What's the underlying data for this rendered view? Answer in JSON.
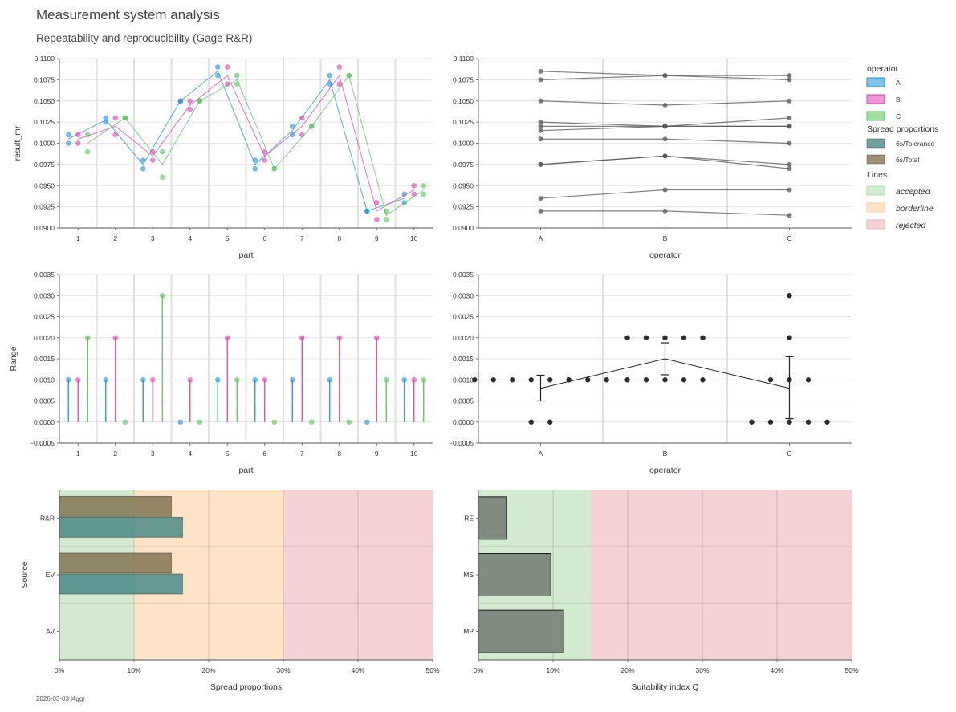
{
  "figure": {
    "title": "Measurement system analysis",
    "subtitle": "Repeatability and reproducibility (Gage R&R)",
    "footer": "2026-03-03 j4ggr"
  },
  "colors": {
    "A": "#1f8fd6",
    "B": "#dc3fb2",
    "C": "#5cbf5c",
    "dark": "#222222",
    "gray": "#555555",
    "tolerance": "#4b8a87",
    "total": "#857652",
    "accepted": "#d2eacf",
    "borderline": "#fee3c7",
    "rejected": "#f5d1d6",
    "q_bar": "#7f8c7f"
  },
  "legend": {
    "operator_title": "operator",
    "operators": [
      "A",
      "B",
      "C"
    ],
    "spread_title": "Spread proportions",
    "spread_items": [
      "6s/Tolerance",
      "6s/Total"
    ],
    "lines_title": "Lines",
    "lines_items": [
      "accepted",
      "borderline",
      "rejected"
    ]
  },
  "chart_data": [
    {
      "id": "individuals_by_part",
      "type": "scatter",
      "xlabel": "part",
      "ylabel": "result_mr",
      "categories": [
        "1",
        "2",
        "3",
        "4",
        "5",
        "6",
        "7",
        "8",
        "9",
        "10"
      ],
      "ylim": [
        0.09,
        0.11
      ],
      "yticks": [
        0.09,
        0.0925,
        0.095,
        0.0975,
        0.1,
        0.1025,
        0.105,
        0.1075,
        0.11
      ],
      "ytick_labels": [
        "0.0900",
        "0.0925",
        "0.0950",
        "0.0975",
        "0.1000",
        "0.1025",
        "0.1050",
        "0.1075",
        "0.1100"
      ],
      "grid": true,
      "series": [
        {
          "name": "A",
          "points": [
            [
              0.101,
              0.1
            ],
            [
              0.103,
              0.1025
            ],
            [
              0.098,
              0.097
            ],
            [
              0.105,
              0.105
            ],
            [
              0.109,
              0.108
            ],
            [
              0.098,
              0.097
            ],
            [
              0.102,
              0.101
            ],
            [
              0.108,
              0.107
            ],
            [
              0.092,
              0.092
            ],
            [
              0.094,
              0.093
            ]
          ]
        },
        {
          "name": "B",
          "points": [
            [
              0.101,
              0.1
            ],
            [
              0.103,
              0.101
            ],
            [
              0.099,
              0.098
            ],
            [
              0.105,
              0.104
            ],
            [
              0.109,
              0.107
            ],
            [
              0.099,
              0.098
            ],
            [
              0.103,
              0.101
            ],
            [
              0.109,
              0.107
            ],
            [
              0.093,
              0.091
            ],
            [
              0.095,
              0.094
            ]
          ]
        },
        {
          "name": "C",
          "points": [
            [
              0.101,
              0.099
            ],
            [
              0.103,
              0.103
            ],
            [
              0.099,
              0.096
            ],
            [
              0.105,
              0.105
            ],
            [
              0.108,
              0.107
            ],
            [
              0.097,
              0.097
            ],
            [
              0.102,
              0.102
            ],
            [
              0.108,
              0.108
            ],
            [
              0.092,
              0.091
            ],
            [
              0.095,
              0.094
            ]
          ]
        }
      ]
    },
    {
      "id": "individuals_by_operator",
      "type": "line",
      "xlabel": "operator",
      "ylabel": "",
      "categories": [
        "A",
        "B",
        "C"
      ],
      "ylim": [
        0.09,
        0.11
      ],
      "yticks": [
        0.09,
        0.0925,
        0.095,
        0.0975,
        0.1,
        0.1025,
        0.105,
        0.1075,
        0.11
      ],
      "ytick_labels": [
        "0.0900",
        "0.0925",
        "0.0950",
        "0.0975",
        "0.1000",
        "0.1025",
        "0.1050",
        "0.1075",
        "0.1100"
      ],
      "grid": true,
      "series": [
        {
          "values": [
            0.1005,
            0.1005,
            0.1
          ]
        },
        {
          "values": [
            0.102,
            0.102,
            0.102
          ]
        },
        {
          "values": [
            0.0975,
            0.0985,
            0.097
          ]
        },
        {
          "values": [
            0.105,
            0.1045,
            0.105
          ]
        },
        {
          "values": [
            0.1085,
            0.108,
            0.1075
          ]
        },
        {
          "values": [
            0.0975,
            0.0985,
            0.0975
          ]
        },
        {
          "values": [
            0.1015,
            0.102,
            0.103
          ]
        },
        {
          "values": [
            0.1075,
            0.108,
            0.108
          ]
        },
        {
          "values": [
            0.092,
            0.092,
            0.0915
          ]
        },
        {
          "values": [
            0.0935,
            0.0945,
            0.0945
          ]
        },
        {
          "values": [
            0.1025,
            0.102,
            0.102
          ]
        }
      ]
    },
    {
      "id": "range_by_part",
      "type": "scatter",
      "xlabel": "part",
      "ylabel": "Range",
      "categories": [
        "1",
        "2",
        "3",
        "4",
        "5",
        "6",
        "7",
        "8",
        "9",
        "10"
      ],
      "ylim": [
        -0.0005,
        0.0035
      ],
      "yticks": [
        -0.0005,
        0,
        0.0005,
        0.001,
        0.0015,
        0.002,
        0.0025,
        0.003,
        0.0035
      ],
      "ytick_labels": [
        "−0.0005",
        "0.0000",
        "0.0005",
        "0.0010",
        "0.0015",
        "0.0020",
        "0.0025",
        "0.0030",
        "0.0035"
      ],
      "grid": true,
      "series": [
        {
          "name": "A",
          "values": [
            0.001,
            0.001,
            0.001,
            0.0,
            0.001,
            0.001,
            0.001,
            0.001,
            0.0,
            0.001
          ]
        },
        {
          "name": "B",
          "values": [
            0.001,
            0.002,
            0.001,
            0.001,
            0.002,
            0.001,
            0.002,
            0.002,
            0.002,
            0.001
          ]
        },
        {
          "name": "C",
          "values": [
            0.002,
            0.0,
            0.003,
            0.0,
            0.001,
            0.0,
            0.0,
            0.0,
            0.001,
            0.001
          ]
        }
      ]
    },
    {
      "id": "range_by_operator",
      "type": "scatter",
      "xlabel": "operator",
      "ylabel": "",
      "categories": [
        "A",
        "B",
        "C"
      ],
      "ylim": [
        -0.0005,
        0.0035
      ],
      "yticks": [
        -0.0005,
        0,
        0.0005,
        0.001,
        0.0015,
        0.002,
        0.0025,
        0.003,
        0.0035
      ],
      "ytick_labels": [
        "−0.0005",
        "0.0000",
        "0.0005",
        "0.0010",
        "0.0015",
        "0.0020",
        "0.0025",
        "0.0030",
        "0.0035"
      ],
      "grid": true,
      "points": {
        "A": [
          0.001,
          0.001,
          0.001,
          0.001,
          0.001,
          0.001,
          0.001,
          0.001,
          0.0,
          0.0
        ],
        "B": [
          0.002,
          0.002,
          0.002,
          0.002,
          0.002,
          0.001,
          0.001,
          0.001,
          0.001,
          0.001
        ],
        "C": [
          0.0,
          0.0,
          0.0,
          0.0,
          0.0,
          0.001,
          0.001,
          0.001,
          0.002,
          0.003
        ]
      },
      "mean": [
        0.0008,
        0.0015,
        0.0008
      ],
      "error_low": [
        0.0005,
        0.00112,
        8e-05
      ],
      "error_high": [
        0.00111,
        0.00188,
        0.00155
      ]
    },
    {
      "id": "spread_proportions",
      "type": "bar",
      "orientation": "horizontal",
      "xlabel": "Spread proportions",
      "ylabel": "Source",
      "categories": [
        "R&R",
        "EV",
        "AV"
      ],
      "xlim": [
        0,
        50
      ],
      "xticks": [
        "0%",
        "10%",
        "20%",
        "30%",
        "40%",
        "50%"
      ],
      "series": [
        {
          "name": "6s/Total",
          "values": [
            15.0,
            15.0,
            0
          ]
        },
        {
          "name": "6s/Tolerance",
          "values": [
            16.5,
            16.5,
            0
          ]
        }
      ],
      "zones": {
        "accepted": [
          0,
          10
        ],
        "borderline": [
          10,
          30
        ],
        "rejected": [
          30,
          50
        ]
      }
    },
    {
      "id": "suitability_index",
      "type": "bar",
      "orientation": "horizontal",
      "xlabel": "Suitability index Q",
      "ylabel": "",
      "categories": [
        "RE",
        "MS",
        "MP"
      ],
      "xlim": [
        0,
        50
      ],
      "xticks": [
        "0%",
        "10%",
        "20%",
        "30%",
        "40%",
        "50%"
      ],
      "values": [
        3.8,
        9.7,
        11.4
      ],
      "zones": {
        "accepted": [
          0,
          15
        ],
        "rejected": [
          15,
          50
        ]
      }
    }
  ]
}
